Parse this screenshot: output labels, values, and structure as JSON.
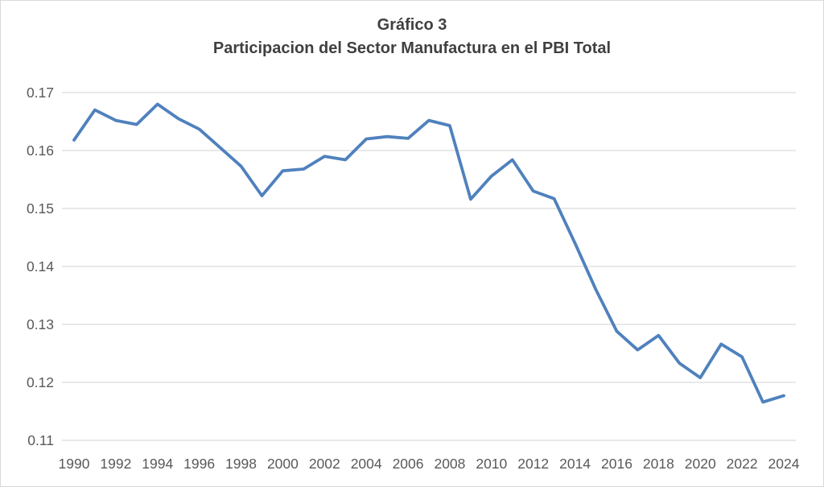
{
  "chart": {
    "title_line1": "Gráfico 3",
    "title_line2": "Participacion del Sector Manufactura en el PBI Total"
  },
  "chart_data": {
    "type": "line",
    "title": "Gráfico 3",
    "subtitle": "Participacion del Sector Manufactura en el PBI Total",
    "xlabel": "",
    "ylabel": "",
    "x": [
      1990,
      1991,
      1992,
      1993,
      1994,
      1995,
      1996,
      1997,
      1998,
      1999,
      2000,
      2001,
      2002,
      2003,
      2004,
      2005,
      2006,
      2007,
      2008,
      2009,
      2010,
      2011,
      2012,
      2013,
      2014,
      2015,
      2016,
      2017,
      2018,
      2019,
      2020,
      2021,
      2022,
      2023,
      2024
    ],
    "values": [
      0.1618,
      0.167,
      0.1652,
      0.1645,
      0.168,
      0.1655,
      0.1637,
      0.1605,
      0.1573,
      0.1522,
      0.1565,
      0.1568,
      0.159,
      0.1584,
      0.162,
      0.1624,
      0.1621,
      0.1652,
      0.1643,
      0.1516,
      0.1556,
      0.1584,
      0.153,
      0.1517,
      0.144,
      0.136,
      0.1288,
      0.1256,
      0.1281,
      0.1233,
      0.1208,
      0.1266,
      0.1244,
      0.1166,
      0.1177
    ],
    "ylim": [
      0.11,
      0.17
    ],
    "y_ticks": [
      0.11,
      0.12,
      0.13,
      0.14,
      0.15,
      0.16,
      0.17
    ],
    "y_tick_labels": [
      "0.11",
      "0.12",
      "0.13",
      "0.14",
      "0.15",
      "0.16",
      "0.17"
    ],
    "x_tick_labels": [
      "1990",
      "1992",
      "1994",
      "1996",
      "1998",
      "2000",
      "2002",
      "2004",
      "2006",
      "2008",
      "2010",
      "2012",
      "2014",
      "2016",
      "2018",
      "2020",
      "2022",
      "2024"
    ],
    "grid": true,
    "legend": false,
    "colors": {
      "line": "#4F81BD",
      "gridline": "#D9D9D9",
      "axis_line": "#D9D9D9",
      "tick_label": "#595959",
      "title": "#404040",
      "background": "#FFFFFF"
    }
  }
}
